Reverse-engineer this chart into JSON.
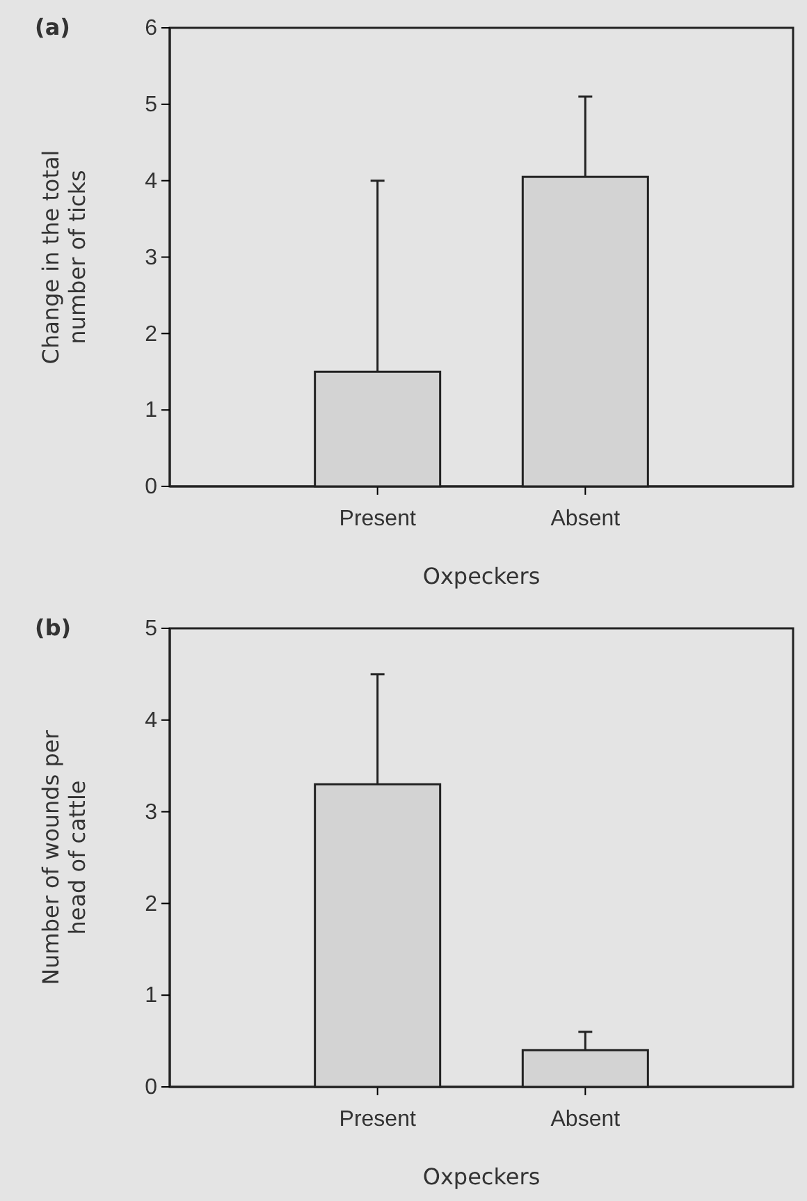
{
  "chart_data": [
    {
      "type": "bar",
      "title": "(a)",
      "categories": [
        "Present",
        "Absent"
      ],
      "values": [
        1.5,
        4.05
      ],
      "errors": [
        [
          1.5,
          4.0
        ],
        [
          4.05,
          5.1
        ]
      ],
      "color": "#d3d3d3",
      "xlabel": "Oxpeckers",
      "ylabel": "Change in the total\nnumber of ticks",
      "ylim": [
        0,
        6
      ],
      "yticks": [
        0,
        1,
        2,
        3,
        4,
        5,
        6
      ]
    },
    {
      "type": "bar",
      "title": "(b)",
      "categories": [
        "Present",
        "Absent"
      ],
      "values": [
        3.3,
        0.4
      ],
      "errors": [
        [
          3.3,
          4.5
        ],
        [
          0.4,
          0.6
        ]
      ],
      "color": "#d3d3d3",
      "xlabel": "Oxpeckers",
      "ylabel": "Number of wounds per\nhead of cattle",
      "ylim": [
        0,
        5
      ],
      "yticks": [
        0,
        1,
        2,
        3,
        4,
        5
      ]
    }
  ]
}
